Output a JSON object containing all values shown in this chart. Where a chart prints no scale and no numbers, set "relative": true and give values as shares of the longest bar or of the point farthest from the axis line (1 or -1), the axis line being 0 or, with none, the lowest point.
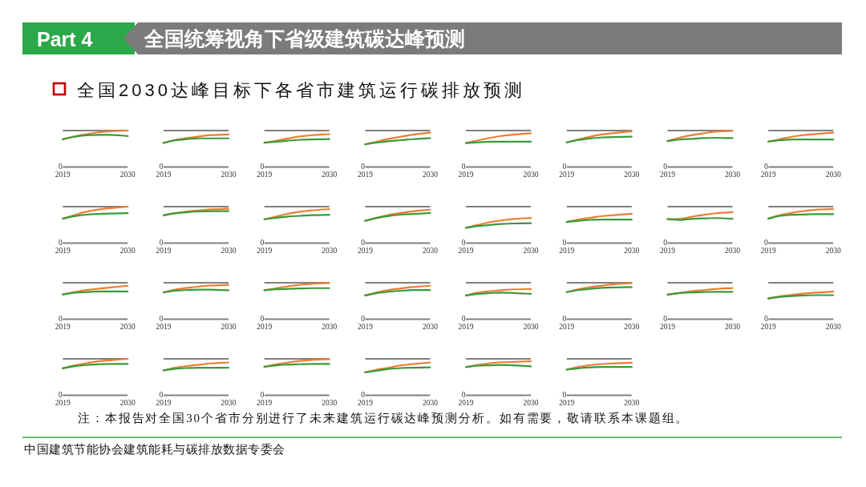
{
  "chart_data": [
    {
      "type": "other",
      "title": "全国统筹视角下省级建筑碳达峰预测",
      "subtitle": "全国2030达峰目标下各省市建筑运行碳排放预测",
      "annotations": [
        "Part 4",
        "注：本报告对全国30个省市分别进行了未来建筑运行碳达峰预测分析。如有需要，敬请联系本课题组。",
        "中国建筑节能协会建筑能耗与碳排放数据专委会"
      ]
    },
    {
      "type": "line",
      "relative": true,
      "x": [
        "2019",
        "2021",
        "2023",
        "2025",
        "2027",
        "2030"
      ],
      "xlim": [
        "2019",
        "2030"
      ],
      "xticks": [
        "2019",
        "2030"
      ],
      "series": [
        {
          "color": "#ed7d31",
          "values": [
            0.76,
            0.84,
            0.9,
            0.95,
            0.98,
            1
          ]
        },
        {
          "color": "#3a9a3a",
          "values": [
            0.76,
            0.83,
            0.87,
            0.88,
            0.88,
            0.85
          ]
        }
      ],
      "ref_lines": [
        {
          "axis": "y",
          "value": 1.0,
          "color": "#808080"
        }
      ],
      "annotations": [
        "0"
      ]
    },
    {
      "type": "line",
      "relative": true,
      "x": [
        "2019",
        "2021",
        "2023",
        "2025",
        "2027",
        "2030"
      ],
      "xlim": [
        "2019",
        "2030"
      ],
      "xticks": [
        "2019",
        "2030"
      ],
      "series": [
        {
          "color": "#ed7d31",
          "values": [
            0.74,
            0.83,
            0.89,
            0.94,
            0.98,
            1
          ]
        },
        {
          "color": "#3a9a3a",
          "values": [
            0.74,
            0.82,
            0.86,
            0.88,
            0.88,
            0.88
          ]
        }
      ],
      "ref_lines": [
        {
          "axis": "y",
          "value": 1.12,
          "color": "#808080"
        }
      ],
      "annotations": [
        "0"
      ]
    },
    {
      "type": "line",
      "relative": true,
      "x": [
        "2019",
        "2021",
        "2023",
        "2025",
        "2027",
        "2030"
      ],
      "xlim": [
        "2019",
        "2030"
      ],
      "xticks": [
        "2019",
        "2030"
      ],
      "series": [
        {
          "color": "#ed7d31",
          "values": [
            0.74,
            0.8,
            0.87,
            0.93,
            0.97,
            1
          ]
        },
        {
          "color": "#3a9a3a",
          "values": [
            0.74,
            0.77,
            0.8,
            0.83,
            0.84,
            0.85
          ]
        }
      ],
      "ref_lines": [
        {
          "axis": "y",
          "value": 1.11,
          "color": "#808080"
        }
      ],
      "annotations": [
        "0"
      ]
    },
    {
      "type": "line",
      "relative": true,
      "x": [
        "2019",
        "2021",
        "2023",
        "2025",
        "2027",
        "2030"
      ],
      "xlim": [
        "2019",
        "2030"
      ],
      "xticks": [
        "2019",
        "2030"
      ],
      "series": [
        {
          "color": "#ed7d31",
          "values": [
            0.66,
            0.74,
            0.82,
            0.88,
            0.94,
            1
          ]
        },
        {
          "color": "#3a9a3a",
          "values": [
            0.66,
            0.71,
            0.75,
            0.78,
            0.81,
            0.84
          ]
        }
      ],
      "ref_lines": [
        {
          "axis": "y",
          "value": 1.06,
          "color": "#808080"
        }
      ],
      "annotations": [
        "0"
      ]
    },
    {
      "type": "line",
      "relative": true,
      "x": [
        "2019",
        "2021",
        "2023",
        "2025",
        "2027",
        "2030"
      ],
      "xlim": [
        "2019",
        "2030"
      ],
      "xticks": [
        "2019",
        "2030"
      ],
      "series": [
        {
          "color": "#ed7d31",
          "values": [
            0.71,
            0.79,
            0.86,
            0.92,
            0.96,
            1
          ]
        },
        {
          "color": "#3a9a3a",
          "values": [
            0.71,
            0.73,
            0.75,
            0.75,
            0.75,
            0.75
          ]
        }
      ],
      "ref_lines": [
        {
          "axis": "y",
          "value": 1.08,
          "color": "#808080"
        }
      ],
      "annotations": [
        "0"
      ]
    },
    {
      "type": "line",
      "relative": true,
      "x": [
        "2019",
        "2021",
        "2023",
        "2025",
        "2027",
        "2030"
      ],
      "xlim": [
        "2019",
        "2030"
      ],
      "xticks": [
        "2019",
        "2030"
      ],
      "series": [
        {
          "color": "#ed7d31",
          "values": [
            0.69,
            0.77,
            0.85,
            0.91,
            0.95,
            1
          ]
        },
        {
          "color": "#3a9a3a",
          "values": [
            0.69,
            0.76,
            0.8,
            0.83,
            0.84,
            0.85
          ]
        }
      ],
      "ref_lines": [
        {
          "axis": "y",
          "value": 1.02,
          "color": "#808080"
        }
      ],
      "annotations": [
        "0"
      ]
    },
    {
      "type": "line",
      "relative": true,
      "x": [
        "2019",
        "2021",
        "2023",
        "2025",
        "2027",
        "2030"
      ],
      "xlim": [
        "2019",
        "2030"
      ],
      "xticks": [
        "2019",
        "2030"
      ],
      "series": [
        {
          "color": "#ed7d31",
          "values": [
            0.72,
            0.81,
            0.88,
            0.93,
            0.98,
            1
          ]
        },
        {
          "color": "#3a9a3a",
          "values": [
            0.72,
            0.76,
            0.78,
            0.8,
            0.81,
            0.8
          ]
        }
      ],
      "ref_lines": [
        {
          "axis": "y",
          "value": 1.01,
          "color": "#808080"
        }
      ],
      "annotations": [
        "0"
      ]
    },
    {
      "type": "line",
      "relative": true,
      "x": [
        "2019",
        "2021",
        "2023",
        "2025",
        "2027",
        "2030"
      ],
      "xlim": [
        "2019",
        "2030"
      ],
      "xticks": [
        "2019",
        "2030"
      ],
      "series": [
        {
          "color": "#ed7d31",
          "values": [
            0.74,
            0.81,
            0.88,
            0.93,
            0.96,
            1
          ]
        },
        {
          "color": "#3a9a3a",
          "values": [
            0.74,
            0.78,
            0.8,
            0.8,
            0.8,
            0.8
          ]
        }
      ],
      "ref_lines": [
        {
          "axis": "y",
          "value": 1.06,
          "color": "#808080"
        }
      ],
      "annotations": [
        "0"
      ]
    },
    {
      "type": "line",
      "relative": true,
      "x": [
        "2019",
        "2021",
        "2023",
        "2025",
        "2027",
        "2030"
      ],
      "xlim": [
        "2019",
        "2030"
      ],
      "xticks": [
        "2019",
        "2030"
      ],
      "series": [
        {
          "color": "#ed7d31",
          "values": [
            0.67,
            0.77,
            0.86,
            0.92,
            0.96,
            1
          ]
        },
        {
          "color": "#3a9a3a",
          "values": [
            0.67,
            0.74,
            0.78,
            0.8,
            0.81,
            0.82
          ]
        }
      ],
      "ref_lines": [
        {
          "axis": "y",
          "value": 1.0,
          "color": "#808080"
        }
      ],
      "annotations": [
        "0"
      ]
    },
    {
      "type": "line",
      "relative": true,
      "x": [
        "2019",
        "2021",
        "2023",
        "2025",
        "2027",
        "2030"
      ],
      "xlim": [
        "2019",
        "2030"
      ],
      "xticks": [
        "2019",
        "2030"
      ],
      "series": [
        {
          "color": "#ed7d31",
          "values": [
            0.81,
            0.87,
            0.92,
            0.95,
            0.98,
            1
          ]
        },
        {
          "color": "#3a9a3a",
          "values": [
            0.81,
            0.87,
            0.9,
            0.92,
            0.93,
            0.93
          ]
        }
      ],
      "ref_lines": [
        {
          "axis": "y",
          "value": 1.06,
          "color": "#808080"
        }
      ],
      "annotations": [
        "0"
      ]
    },
    {
      "type": "line",
      "relative": true,
      "x": [
        "2019",
        "2021",
        "2023",
        "2025",
        "2027",
        "2030"
      ],
      "xlim": [
        "2019",
        "2030"
      ],
      "xticks": [
        "2019",
        "2030"
      ],
      "series": [
        {
          "color": "#ed7d31",
          "values": [
            0.7,
            0.78,
            0.86,
            0.92,
            0.96,
            1
          ]
        },
        {
          "color": "#3a9a3a",
          "values": [
            0.7,
            0.74,
            0.78,
            0.8,
            0.82,
            0.83
          ]
        }
      ],
      "ref_lines": [
        {
          "axis": "y",
          "value": 1.07,
          "color": "#808080"
        }
      ],
      "annotations": [
        "0"
      ]
    },
    {
      "type": "line",
      "relative": true,
      "x": [
        "2019",
        "2021",
        "2023",
        "2025",
        "2027",
        "2030"
      ],
      "xlim": [
        "2019",
        "2030"
      ],
      "xticks": [
        "2019",
        "2030"
      ],
      "series": [
        {
          "color": "#ed7d31",
          "values": [
            0.67,
            0.76,
            0.84,
            0.9,
            0.95,
            1
          ]
        },
        {
          "color": "#3a9a3a",
          "values": [
            0.67,
            0.75,
            0.81,
            0.85,
            0.87,
            0.9
          ]
        }
      ],
      "ref_lines": [
        {
          "axis": "y",
          "value": 1.09,
          "color": "#808080"
        }
      ],
      "annotations": [
        "0"
      ]
    },
    {
      "type": "line",
      "relative": true,
      "x": [
        "2019",
        "2021",
        "2023",
        "2025",
        "2027",
        "2030"
      ],
      "xlim": [
        "2019",
        "2030"
      ],
      "xticks": [
        "2019",
        "2030"
      ],
      "series": [
        {
          "color": "#ed7d31",
          "values": [
            0.61,
            0.72,
            0.83,
            0.9,
            0.96,
            1
          ]
        },
        {
          "color": "#3a9a3a",
          "values": [
            0.61,
            0.68,
            0.72,
            0.76,
            0.78,
            0.79
          ]
        }
      ],
      "ref_lines": [
        {
          "axis": "y",
          "value": 1.45,
          "color": "#808080"
        }
      ],
      "annotations": [
        "0"
      ]
    },
    {
      "type": "line",
      "relative": true,
      "x": [
        "2019",
        "2021",
        "2023",
        "2025",
        "2027",
        "2030"
      ],
      "xlim": [
        "2019",
        "2030"
      ],
      "xticks": [
        "2019",
        "2030"
      ],
      "series": [
        {
          "color": "#ed7d31",
          "values": [
            0.72,
            0.8,
            0.86,
            0.92,
            0.95,
            1
          ]
        },
        {
          "color": "#3a9a3a",
          "values": [
            0.72,
            0.76,
            0.79,
            0.8,
            0.8,
            0.8
          ]
        }
      ],
      "ref_lines": [
        {
          "axis": "y",
          "value": 1.24,
          "color": "#808080"
        }
      ],
      "annotations": [
        "0"
      ]
    },
    {
      "type": "line",
      "relative": true,
      "x": [
        "2019",
        "2021",
        "2023",
        "2025",
        "2027",
        "2030"
      ],
      "xlim": [
        "2019",
        "2030"
      ],
      "xticks": [
        "2019",
        "2030"
      ],
      "series": [
        {
          "color": "#ed7d31",
          "values": [
            0.77,
            0.78,
            0.85,
            0.91,
            0.96,
            1
          ]
        },
        {
          "color": "#3a9a3a",
          "values": [
            0.78,
            0.75,
            0.78,
            0.8,
            0.81,
            0.79
          ]
        }
      ],
      "ref_lines": [
        {
          "axis": "y",
          "value": 1.18,
          "color": "#808080"
        }
      ],
      "annotations": [
        "0"
      ]
    },
    {
      "type": "line",
      "relative": true,
      "x": [
        "2019",
        "2021",
        "2023",
        "2025",
        "2027",
        "2030"
      ],
      "xlim": [
        "2019",
        "2030"
      ],
      "xticks": [
        "2019",
        "2030"
      ],
      "series": [
        {
          "color": "#ed7d31",
          "values": [
            0.72,
            0.82,
            0.89,
            0.94,
            0.98,
            1
          ]
        },
        {
          "color": "#3a9a3a",
          "values": [
            0.72,
            0.8,
            0.83,
            0.84,
            0.85,
            0.85
          ]
        }
      ],
      "ref_lines": [
        {
          "axis": "y",
          "value": 1.07,
          "color": "#808080"
        }
      ],
      "annotations": [
        "0"
      ]
    },
    {
      "type": "line",
      "relative": true,
      "x": [
        "2019",
        "2021",
        "2023",
        "2025",
        "2027",
        "2030"
      ],
      "xlim": [
        "2019",
        "2030"
      ],
      "xticks": [
        "2019",
        "2030"
      ],
      "series": [
        {
          "color": "#ed7d31",
          "values": [
            0.74,
            0.81,
            0.87,
            0.91,
            0.95,
            1
          ]
        },
        {
          "color": "#3a9a3a",
          "values": [
            0.74,
            0.79,
            0.81,
            0.83,
            0.83,
            0.83
          ]
        }
      ],
      "ref_lines": [
        {
          "axis": "y",
          "value": 1.09,
          "color": "#808080"
        }
      ],
      "annotations": [
        "0"
      ]
    },
    {
      "type": "line",
      "relative": true,
      "x": [
        "2019",
        "2021",
        "2023",
        "2025",
        "2027",
        "2030"
      ],
      "xlim": [
        "2019",
        "2030"
      ],
      "xticks": [
        "2019",
        "2030"
      ],
      "series": [
        {
          "color": "#ed7d31",
          "values": [
            0.78,
            0.86,
            0.91,
            0.95,
            0.98,
            1
          ]
        },
        {
          "color": "#3a9a3a",
          "values": [
            0.78,
            0.83,
            0.85,
            0.86,
            0.86,
            0.84
          ]
        }
      ],
      "ref_lines": [
        {
          "axis": "y",
          "value": 1.06,
          "color": "#808080"
        }
      ],
      "annotations": [
        "0"
      ]
    },
    {
      "type": "line",
      "relative": true,
      "x": [
        "2019",
        "2021",
        "2023",
        "2025",
        "2027",
        "2030"
      ],
      "xlim": [
        "2019",
        "2030"
      ],
      "xticks": [
        "2019",
        "2030"
      ],
      "series": [
        {
          "color": "#ed7d31",
          "values": [
            0.8,
            0.86,
            0.91,
            0.95,
            0.98,
            1
          ]
        },
        {
          "color": "#3a9a3a",
          "values": [
            0.8,
            0.83,
            0.84,
            0.85,
            0.86,
            0.86
          ]
        }
      ],
      "ref_lines": [
        {
          "axis": "y",
          "value": 1.01,
          "color": "#808080"
        }
      ],
      "annotations": [
        "0"
      ]
    },
    {
      "type": "line",
      "relative": true,
      "x": [
        "2019",
        "2021",
        "2023",
        "2025",
        "2027",
        "2030"
      ],
      "xlim": [
        "2019",
        "2030"
      ],
      "xticks": [
        "2019",
        "2030"
      ],
      "series": [
        {
          "color": "#ed7d31",
          "values": [
            0.71,
            0.8,
            0.87,
            0.92,
            0.96,
            1
          ]
        },
        {
          "color": "#3a9a3a",
          "values": [
            0.71,
            0.78,
            0.82,
            0.85,
            0.87,
            0.87
          ]
        }
      ],
      "ref_lines": [
        {
          "axis": "y",
          "value": 1.09,
          "color": "#808080"
        }
      ],
      "annotations": [
        "0"
      ]
    },
    {
      "type": "line",
      "relative": true,
      "x": [
        "2019",
        "2021",
        "2023",
        "2025",
        "2027",
        "2030"
      ],
      "xlim": [
        "2019",
        "2030"
      ],
      "xticks": [
        "2019",
        "2030"
      ],
      "series": [
        {
          "color": "#ed7d31",
          "values": [
            0.79,
            0.88,
            0.93,
            0.96,
            0.99,
            1
          ]
        },
        {
          "color": "#3a9a3a",
          "values": [
            0.79,
            0.84,
            0.87,
            0.88,
            0.87,
            0.84
          ]
        }
      ],
      "ref_lines": [
        {
          "axis": "y",
          "value": 1.21,
          "color": "#808080"
        }
      ],
      "annotations": [
        "0"
      ]
    },
    {
      "type": "line",
      "relative": true,
      "x": [
        "2019",
        "2021",
        "2023",
        "2025",
        "2027",
        "2030"
      ],
      "xlim": [
        "2019",
        "2030"
      ],
      "xticks": [
        "2019",
        "2030"
      ],
      "series": [
        {
          "color": "#ed7d31",
          "values": [
            0.75,
            0.83,
            0.89,
            0.93,
            0.97,
            1
          ]
        },
        {
          "color": "#3a9a3a",
          "values": [
            0.75,
            0.81,
            0.84,
            0.87,
            0.88,
            0.89
          ]
        }
      ],
      "ref_lines": [
        {
          "axis": "y",
          "value": 1.01,
          "color": "#808080"
        }
      ],
      "annotations": [
        "0"
      ]
    },
    {
      "type": "line",
      "relative": true,
      "x": [
        "2019",
        "2021",
        "2023",
        "2025",
        "2027",
        "2030"
      ],
      "xlim": [
        "2019",
        "2030"
      ],
      "xticks": [
        "2019",
        "2030"
      ],
      "series": [
        {
          "color": "#ed7d31",
          "values": [
            0.79,
            0.84,
            0.9,
            0.93,
            0.97,
            1
          ]
        },
        {
          "color": "#3a9a3a",
          "values": [
            0.79,
            0.84,
            0.86,
            0.87,
            0.88,
            0.88
          ]
        }
      ],
      "ref_lines": [
        {
          "axis": "y",
          "value": 1.17,
          "color": "#808080"
        }
      ],
      "annotations": [
        "0"
      ]
    },
    {
      "type": "line",
      "relative": true,
      "x": [
        "2019",
        "2021",
        "2023",
        "2025",
        "2027",
        "2030"
      ],
      "xlim": [
        "2019",
        "2030"
      ],
      "xticks": [
        "2019",
        "2030"
      ],
      "series": [
        {
          "color": "#ed7d31",
          "values": [
            0.75,
            0.83,
            0.88,
            0.93,
            0.96,
            1
          ]
        },
        {
          "color": "#3a9a3a",
          "values": [
            0.75,
            0.81,
            0.84,
            0.86,
            0.87,
            0.87
          ]
        }
      ],
      "ref_lines": [
        {
          "axis": "y",
          "value": 1.32,
          "color": "#808080"
        }
      ],
      "annotations": [
        "0"
      ]
    },
    {
      "type": "line",
      "relative": true,
      "x": [
        "2019",
        "2021",
        "2023",
        "2025",
        "2027",
        "2030"
      ],
      "xlim": [
        "2019",
        "2030"
      ],
      "xticks": [
        "2019",
        "2030"
      ],
      "series": [
        {
          "color": "#ed7d31",
          "values": [
            0.74,
            0.82,
            0.88,
            0.93,
            0.96,
            1
          ]
        },
        {
          "color": "#3a9a3a",
          "values": [
            0.74,
            0.8,
            0.83,
            0.85,
            0.86,
            0.86
          ]
        }
      ],
      "ref_lines": [
        {
          "axis": "y",
          "value": 1.0,
          "color": "#808080"
        }
      ],
      "annotations": [
        "0"
      ]
    },
    {
      "type": "line",
      "relative": true,
      "x": [
        "2019",
        "2021",
        "2023",
        "2025",
        "2027",
        "2030"
      ],
      "xlim": [
        "2019",
        "2030"
      ],
      "xticks": [
        "2019",
        "2030"
      ],
      "series": [
        {
          "color": "#ed7d31",
          "values": [
            0.76,
            0.84,
            0.89,
            0.93,
            0.97,
            1
          ]
        },
        {
          "color": "#3a9a3a",
          "values": [
            0.76,
            0.81,
            0.83,
            0.84,
            0.84,
            0.84
          ]
        }
      ],
      "ref_lines": [
        {
          "axis": "y",
          "value": 1.11,
          "color": "#808080"
        }
      ],
      "annotations": [
        "0"
      ]
    },
    {
      "type": "line",
      "relative": true,
      "x": [
        "2019",
        "2021",
        "2023",
        "2025",
        "2027",
        "2030"
      ],
      "xlim": [
        "2019",
        "2030"
      ],
      "xticks": [
        "2019",
        "2030"
      ],
      "series": [
        {
          "color": "#ed7d31",
          "values": [
            0.79,
            0.86,
            0.91,
            0.95,
            0.98,
            1
          ]
        },
        {
          "color": "#3a9a3a",
          "values": [
            0.79,
            0.83,
            0.85,
            0.86,
            0.87,
            0.87
          ]
        }
      ],
      "ref_lines": [
        {
          "axis": "y",
          "value": 1.01,
          "color": "#808080"
        }
      ],
      "annotations": [
        "0"
      ]
    },
    {
      "type": "line",
      "relative": true,
      "x": [
        "2019",
        "2021",
        "2023",
        "2025",
        "2027",
        "2030"
      ],
      "xlim": [
        "2019",
        "2030"
      ],
      "xticks": [
        "2019",
        "2030"
      ],
      "series": [
        {
          "color": "#ed7d31",
          "values": [
            0.7,
            0.78,
            0.84,
            0.91,
            0.95,
            1
          ]
        },
        {
          "color": "#3a9a3a",
          "values": [
            0.7,
            0.75,
            0.8,
            0.83,
            0.84,
            0.85
          ]
        }
      ],
      "ref_lines": [
        {
          "axis": "y",
          "value": 1.11,
          "color": "#808080"
        }
      ],
      "annotations": [
        "0"
      ]
    },
    {
      "type": "line",
      "relative": true,
      "x": [
        "2019",
        "2021",
        "2023",
        "2025",
        "2027",
        "2030"
      ],
      "xlim": [
        "2019",
        "2030"
      ],
      "xticks": [
        "2019",
        "2030"
      ],
      "series": [
        {
          "color": "#ed7d31",
          "values": [
            0.83,
            0.89,
            0.94,
            0.97,
            0.98,
            1
          ]
        },
        {
          "color": "#3a9a3a",
          "values": [
            0.83,
            0.87,
            0.88,
            0.89,
            0.88,
            0.85
          ]
        }
      ],
      "ref_lines": [
        {
          "axis": "y",
          "value": 1.07,
          "color": "#808080"
        }
      ],
      "annotations": [
        "0"
      ]
    },
    {
      "type": "line",
      "relative": true,
      "x": [
        "2019",
        "2021",
        "2023",
        "2025",
        "2027",
        "2030"
      ],
      "xlim": [
        "2019",
        "2030"
      ],
      "xticks": [
        "2019",
        "2030"
      ],
      "series": [
        {
          "color": "#ed7d31",
          "values": [
            0.79,
            0.87,
            0.93,
            0.96,
            0.98,
            1
          ]
        },
        {
          "color": "#3a9a3a",
          "values": [
            0.79,
            0.83,
            0.86,
            0.87,
            0.87,
            0.87
          ]
        }
      ],
      "ref_lines": [
        {
          "axis": "y",
          "value": 1.12,
          "color": "#808080"
        }
      ],
      "annotations": [
        "0"
      ]
    }
  ]
}
